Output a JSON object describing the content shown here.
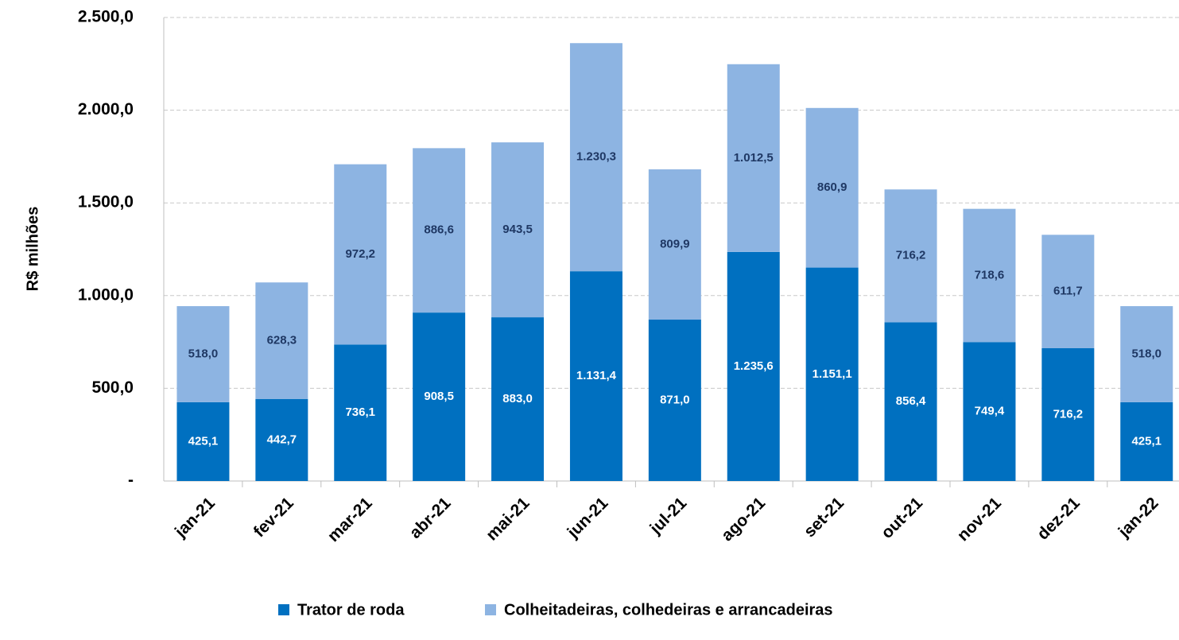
{
  "chart_data": {
    "type": "stacked_bar",
    "y_label": "R$ milhões",
    "categories": [
      "jan-21",
      "fev-21",
      "mar-21",
      "abr-21",
      "mai-21",
      "jun-21",
      "jul-21",
      "ago-21",
      "set-21",
      "out-21",
      "nov-21",
      "dez-21",
      "jan-22"
    ],
    "series": [
      {
        "name": "Trator de roda",
        "color": "#0070c0",
        "label_color": "#ffffff",
        "values": [
          425.1,
          442.7,
          736.1,
          908.5,
          883.0,
          1131.4,
          871.0,
          1235.6,
          1151.1,
          856.4,
          749.4,
          716.2,
          425.1
        ],
        "value_labels": [
          "425,1",
          "442,7",
          "736,1",
          "908,5",
          "883,0",
          "1.131,4",
          "871,0",
          "1.235,6",
          "1.151,1",
          "856,4",
          "749,4",
          "716,2",
          "425,1"
        ]
      },
      {
        "name": "Colheitadeiras, colhedeiras e arrancadeiras",
        "color": "#8db4e2",
        "label_color": "#1f3864",
        "values": [
          518.0,
          628.3,
          972.2,
          886.6,
          943.5,
          1230.3,
          809.9,
          1012.5,
          860.9,
          716.2,
          718.6,
          611.7,
          518.0
        ],
        "value_labels": [
          "518,0",
          "628,3",
          "972,2",
          "886,6",
          "943,5",
          "1.230,3",
          "809,9",
          "1.012,5",
          "860,9",
          "716,2",
          "718,6",
          "611,7",
          "518,0"
        ]
      }
    ],
    "ylim": [
      0,
      2500
    ],
    "yticks": [
      {
        "value": 0,
        "label": "-"
      },
      {
        "value": 500,
        "label": "500,0"
      },
      {
        "value": 1000,
        "label": "1.000,0"
      },
      {
        "value": 1500,
        "label": "1.500,0"
      },
      {
        "value": 2000,
        "label": "2.000,0"
      },
      {
        "value": 2500,
        "label": "2.500,0"
      }
    ],
    "grid": true,
    "legend": "bottom"
  }
}
